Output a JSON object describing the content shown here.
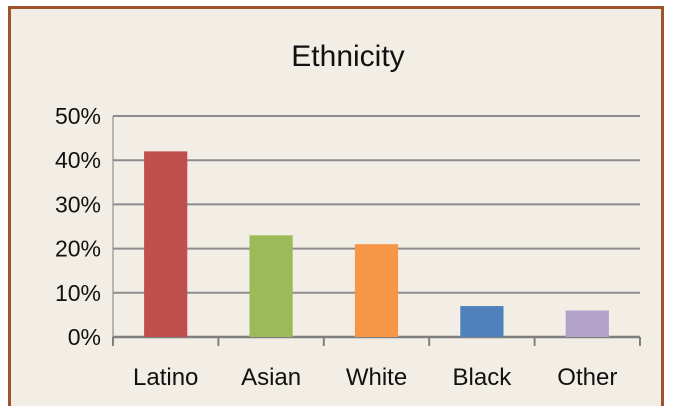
{
  "chart_data": {
    "type": "bar",
    "title": "Ethnicity",
    "xlabel": "",
    "ylabel": "",
    "categories": [
      "Latino",
      "Asian",
      "White",
      "Black",
      "Other"
    ],
    "values": [
      0.42,
      0.23,
      0.21,
      0.07,
      0.06
    ],
    "colors": [
      "#c0504d",
      "#9bbb59",
      "#f79646",
      "#4f81bd",
      "#b3a2c7"
    ],
    "ylim": [
      0,
      0.5
    ],
    "yticks": [
      0,
      0.1,
      0.2,
      0.3,
      0.4,
      0.5
    ],
    "ytick_labels": [
      "0%",
      "10%",
      "20%",
      "30%",
      "40%",
      "50%"
    ],
    "grid": true,
    "legend": "none",
    "frame_color": "#a0522d",
    "background_color": "#f2eee6"
  }
}
